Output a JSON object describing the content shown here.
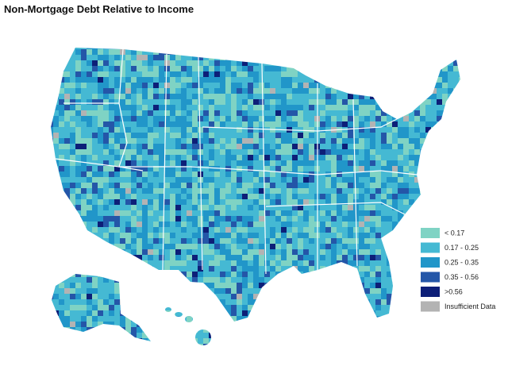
{
  "title": "Non-Mortgage Debt Relative to Income",
  "legend": {
    "items": [
      {
        "label": "< 0.17",
        "color": "#7fd3c4"
      },
      {
        "label": "0.17 - 0.25",
        "color": "#45b9d3"
      },
      {
        "label": "0.25 - 0.35",
        "color": "#2196c9"
      },
      {
        "label": "0.35 - 0.56",
        "color": "#2456a8"
      },
      {
        "label": ">0.56",
        "color": "#0d1f78"
      },
      {
        "label": "Insufficient Data",
        "color": "#b3b3b3"
      }
    ]
  }
}
